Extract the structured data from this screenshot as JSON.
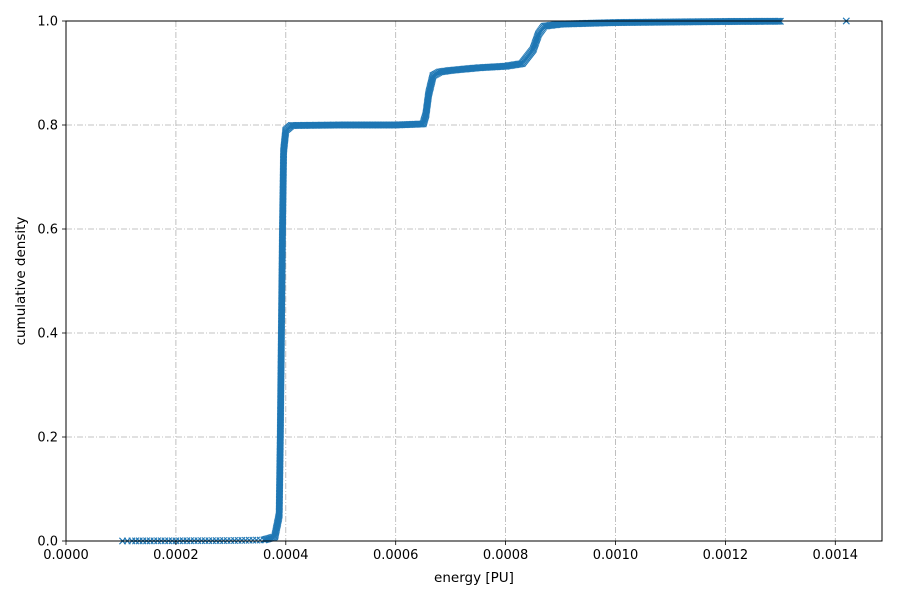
{
  "chart_data": {
    "type": "scatter",
    "xlabel": "energy [PU]",
    "ylabel": "cumulative density",
    "xlim": [
      0.0,
      0.001485
    ],
    "ylim": [
      0.0,
      1.0
    ],
    "xticks": [
      "0.0000",
      "0.0002",
      "0.0004",
      "0.0006",
      "0.0008",
      "0.0010",
      "0.0012",
      "0.0014"
    ],
    "yticks": [
      "0.0",
      "0.2",
      "0.4",
      "0.6",
      "0.8",
      "1.0"
    ],
    "grid": true,
    "marker": "x",
    "color": "#1f77b4",
    "curve_points": [
      [
        0.000103,
        0.0
      ],
      [
        0.00012,
        0.0002
      ],
      [
        0.0002,
        0.0004
      ],
      [
        0.0003,
        0.0008
      ],
      [
        0.00036,
        0.002
      ],
      [
        0.00038,
        0.008
      ],
      [
        0.000388,
        0.05
      ],
      [
        0.00039,
        0.2
      ],
      [
        0.000392,
        0.4
      ],
      [
        0.000394,
        0.6
      ],
      [
        0.000396,
        0.75
      ],
      [
        0.0004,
        0.79
      ],
      [
        0.00041,
        0.799
      ],
      [
        0.0005,
        0.8
      ],
      [
        0.0006,
        0.8
      ],
      [
        0.00065,
        0.802
      ],
      [
        0.000655,
        0.82
      ],
      [
        0.00066,
        0.86
      ],
      [
        0.000668,
        0.895
      ],
      [
        0.00068,
        0.902
      ],
      [
        0.0007,
        0.905
      ],
      [
        0.00075,
        0.91
      ],
      [
        0.0008,
        0.913
      ],
      [
        0.00083,
        0.918
      ],
      [
        0.00085,
        0.945
      ],
      [
        0.00086,
        0.975
      ],
      [
        0.00087,
        0.99
      ],
      [
        0.0009,
        0.994
      ],
      [
        0.001,
        0.997
      ],
      [
        0.0011,
        0.998
      ],
      [
        0.0012,
        0.999
      ],
      [
        0.0013,
        0.9995
      ],
      [
        0.00142,
        1.0
      ]
    ]
  }
}
